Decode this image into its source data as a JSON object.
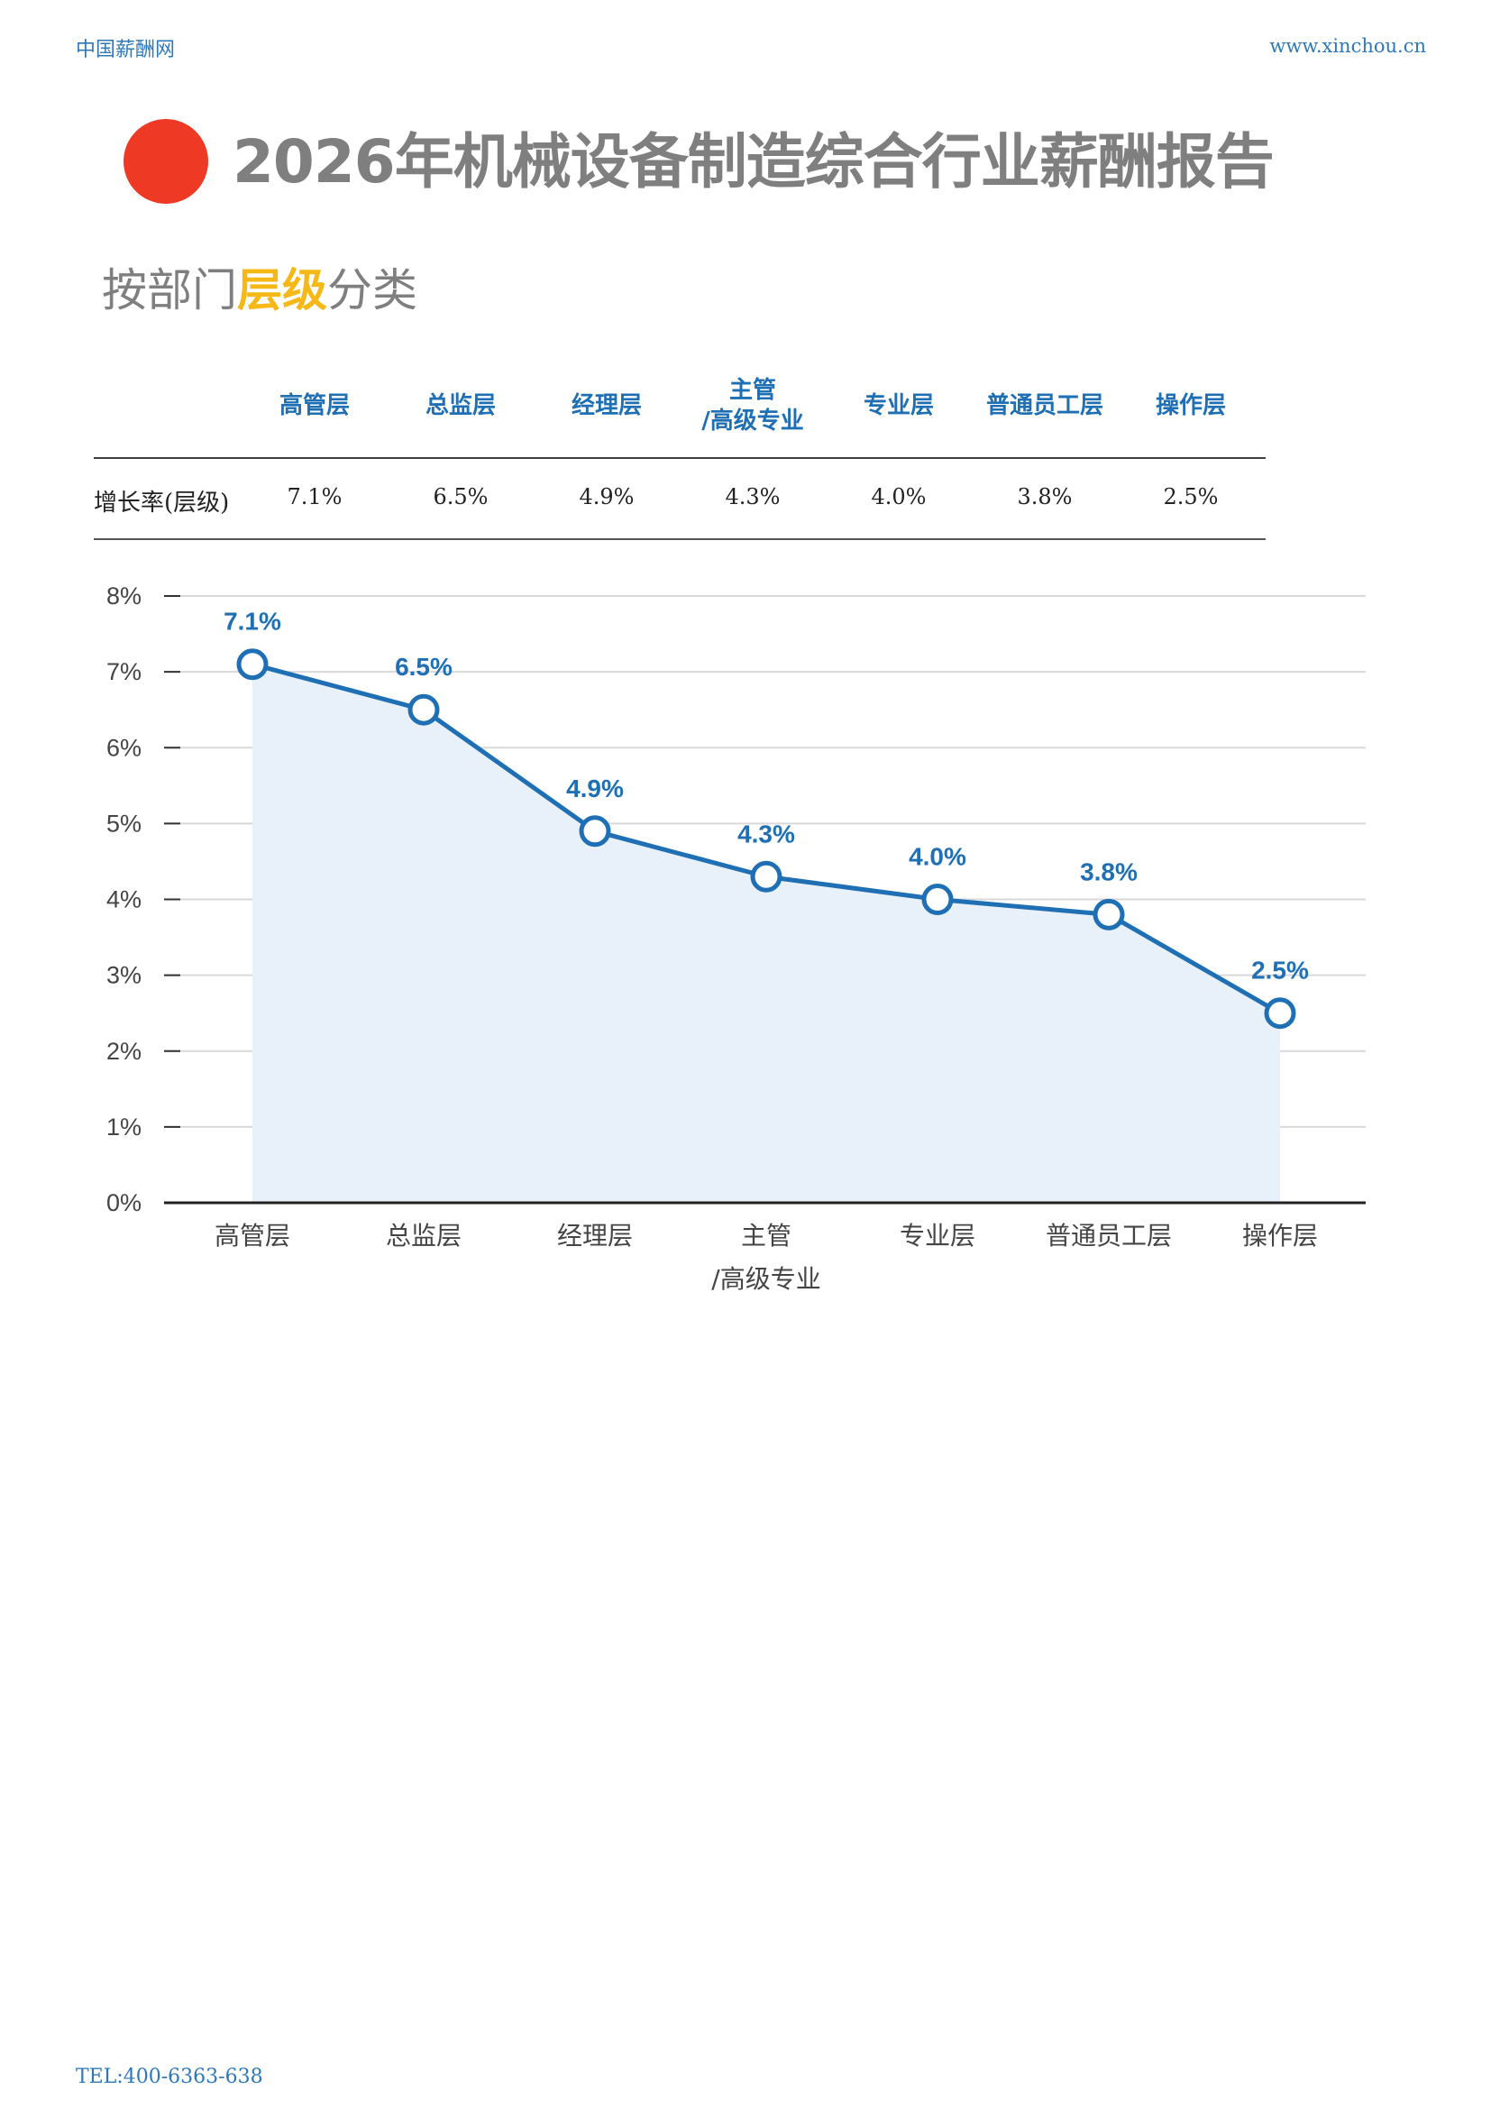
{
  "header": {
    "brand": "中国薪酬网",
    "site": "www.xinchou.cn"
  },
  "title": "2026年机械设备制造综合行业薪酬报告",
  "section": {
    "prefix": "按部门",
    "highlight": "层级",
    "suffix": "分类"
  },
  "table": {
    "headers": [
      "高管层",
      "总监层",
      "经理层",
      "主管\n/高级专业",
      "专业层",
      "普通员工层",
      "操作层"
    ],
    "row_label": "增长率(层级)",
    "values": [
      "7.1%",
      "6.5%",
      "4.9%",
      "4.3%",
      "4.0%",
      "3.8%",
      "2.5%"
    ]
  },
  "chart_data": {
    "type": "area",
    "categories": [
      "高管层",
      "总监层",
      "经理层",
      "主管\n/高级专业",
      "专业层",
      "普通员工层",
      "操作层"
    ],
    "series": [
      {
        "values": [
          7.1,
          6.5,
          4.9,
          4.3,
          4.0,
          3.8,
          2.5
        ]
      }
    ],
    "data_labels": [
      "7.1%",
      "6.5%",
      "4.9%",
      "4.3%",
      "4.0%",
      "3.8%",
      "2.5%"
    ],
    "y_ticks": [
      "0%",
      "1%",
      "2%",
      "3%",
      "4%",
      "5%",
      "6%",
      "7%",
      "8%"
    ],
    "ylim": [
      0,
      8
    ],
    "grid": true,
    "colors": {
      "line": "#1f6fb5",
      "fill": "#e8f1f9",
      "grid": "#d9d9d9"
    }
  },
  "footer": {
    "tel": "TEL:400-6363-638"
  }
}
